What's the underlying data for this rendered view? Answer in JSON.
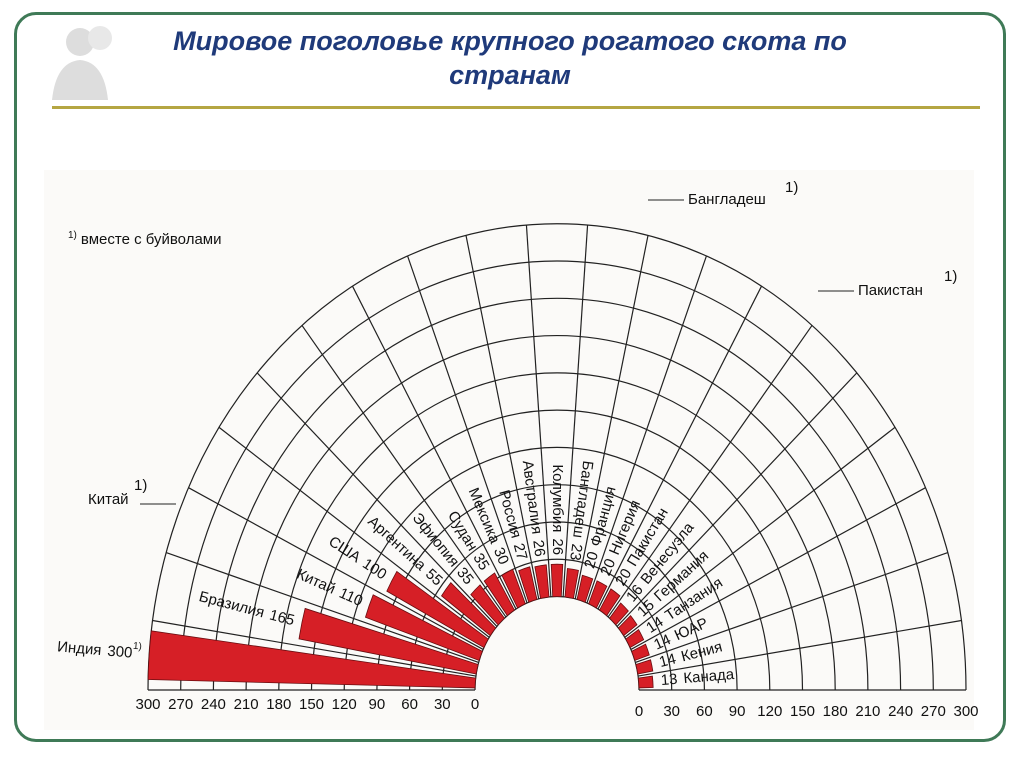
{
  "title": "Мировое поголовье крупного рогатого скота по странам",
  "chart_data": {
    "type": "radial-bar",
    "categories": [
      "Индия",
      "Бразилия",
      "Китай",
      "США",
      "Аргентина",
      "Эфиопия",
      "Судан",
      "Мексика",
      "Россия",
      "Австралия",
      "Колумбия",
      "Бангладеш",
      "Франция",
      "Нигерия",
      "Пакистан",
      "Венесуэла",
      "Германия",
      "Танзания",
      "ЮАР",
      "Кения",
      "Канада"
    ],
    "values": [
      300,
      165,
      110,
      100,
      55,
      35,
      35,
      30,
      27,
      26,
      26,
      23,
      20,
      20,
      20,
      16,
      15,
      14,
      14,
      14,
      13
    ],
    "color": "#d61f26",
    "rlim": [
      0,
      300
    ],
    "rticks": [
      0,
      30,
      60,
      90,
      120,
      150,
      180,
      210,
      240,
      270,
      300
    ],
    "grid": true,
    "footnote": {
      "marker": "1)",
      "text": "вместе с буйволами"
    },
    "outer_labels": [
      "Бангладеш",
      "Пакистан",
      "Китай"
    ]
  }
}
